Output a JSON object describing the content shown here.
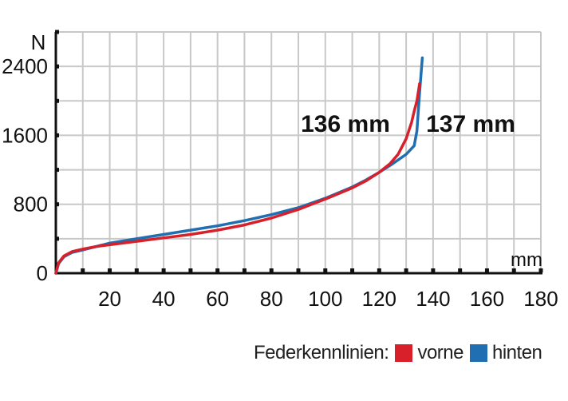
{
  "chart_data": {
    "type": "line",
    "title": "",
    "xlabel": "mm",
    "ylabel": "N",
    "xlim": [
      0,
      180
    ],
    "ylim": [
      0,
      2800
    ],
    "x_ticks": [
      20,
      40,
      60,
      80,
      100,
      120,
      140,
      160,
      180
    ],
    "y_ticks": [
      0,
      800,
      1600,
      2400
    ],
    "x_tick_labels": [
      "20",
      "40",
      "60",
      "80",
      "100",
      "120",
      "140",
      "160",
      "180"
    ],
    "y_tick_labels": [
      "0",
      "800",
      "1600",
      "2400"
    ],
    "grid": true,
    "legend_title": "Federkennlinien:",
    "legend_position": "bottom-right",
    "series": [
      {
        "name": "vorne",
        "color": "#d7202a",
        "end_label": "136 mm",
        "x": [
          0,
          1,
          3,
          6,
          10,
          15,
          20,
          30,
          40,
          50,
          60,
          70,
          80,
          90,
          100,
          110,
          115,
          120,
          124,
          127,
          130,
          132,
          133,
          134,
          135
        ],
        "y": [
          0,
          120,
          200,
          250,
          280,
          310,
          330,
          370,
          410,
          450,
          500,
          560,
          640,
          740,
          860,
          990,
          1070,
          1170,
          1270,
          1380,
          1560,
          1750,
          1880,
          2000,
          2200
        ]
      },
      {
        "name": "hinten",
        "color": "#1f6fb2",
        "end_label": "137 mm",
        "x": [
          0,
          1,
          3,
          6,
          10,
          15,
          20,
          30,
          40,
          50,
          60,
          70,
          80,
          90,
          100,
          110,
          115,
          120,
          125,
          130,
          133,
          134,
          135,
          136
        ],
        "y": [
          0,
          110,
          190,
          240,
          270,
          310,
          350,
          400,
          450,
          500,
          550,
          610,
          680,
          760,
          870,
          1000,
          1080,
          1170,
          1270,
          1380,
          1480,
          1650,
          2100,
          2500
        ]
      }
    ]
  }
}
